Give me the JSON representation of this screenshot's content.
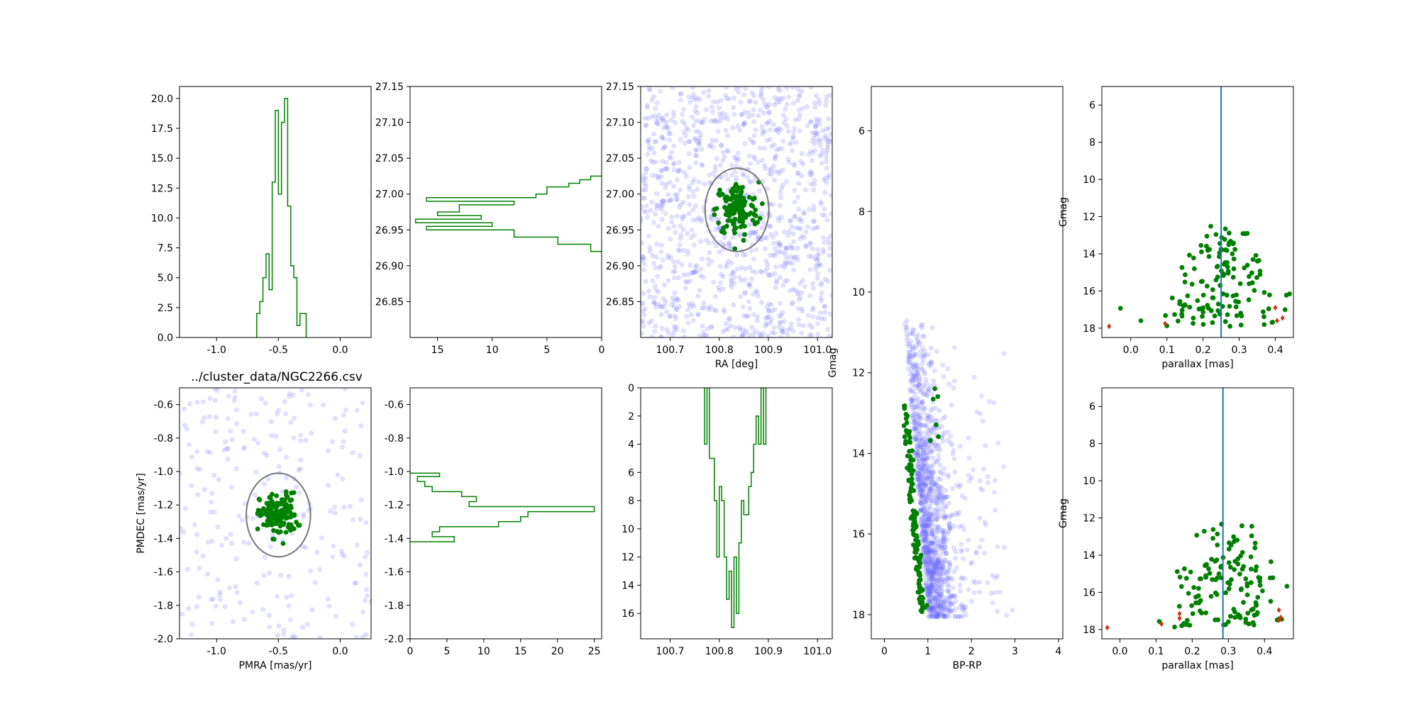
{
  "figure": {
    "title": "../cluster_data/NGC2266.csv"
  },
  "colors": {
    "member": "#008000",
    "field": "#6666ff",
    "ellipse": "#777777",
    "outlier": "#cc3311",
    "vline": "#1f77b4"
  },
  "chart_data": [
    {
      "id": "pmra-hist",
      "type": "histogram",
      "xlim": [
        -1.3,
        0.25
      ],
      "ylim": [
        0,
        21
      ],
      "xticks": [
        "-1.0",
        "-0.5",
        "0.0"
      ],
      "yticks": [
        "0.0",
        "2.5",
        "5.0",
        "7.5",
        "10.0",
        "12.5",
        "15.0",
        "17.5",
        "20.0"
      ],
      "bins": [
        [
          -0.675,
          -0.65,
          2
        ],
        [
          -0.65,
          -0.625,
          3
        ],
        [
          -0.625,
          -0.6,
          5
        ],
        [
          -0.6,
          -0.575,
          7
        ],
        [
          -0.575,
          -0.55,
          4
        ],
        [
          -0.55,
          -0.525,
          13
        ],
        [
          -0.525,
          -0.5,
          19
        ],
        [
          -0.5,
          -0.475,
          12
        ],
        [
          -0.475,
          -0.45,
          18
        ],
        [
          -0.45,
          -0.425,
          20
        ],
        [
          -0.425,
          -0.4,
          11
        ],
        [
          -0.4,
          -0.375,
          6
        ],
        [
          -0.375,
          -0.35,
          5
        ],
        [
          -0.35,
          -0.325,
          1
        ],
        [
          -0.325,
          -0.3,
          2
        ],
        [
          -0.3,
          -0.275,
          2
        ]
      ]
    },
    {
      "id": "dec-hist",
      "type": "histogram",
      "orientation": "horizontal",
      "xlim": [
        17.5,
        0
      ],
      "ylim": [
        26.8,
        27.15
      ],
      "xticks": [
        "15",
        "10",
        "5",
        "0"
      ],
      "yticks": [
        "26.85",
        "26.90",
        "26.95",
        "27.00",
        "27.05",
        "27.10",
        "27.15"
      ],
      "bins": [
        [
          26.92,
          26.93,
          1
        ],
        [
          26.93,
          26.94,
          4
        ],
        [
          26.94,
          26.95,
          8
        ],
        [
          26.95,
          26.955,
          16
        ],
        [
          26.955,
          26.96,
          10
        ],
        [
          26.96,
          26.965,
          17
        ],
        [
          26.965,
          26.97,
          11
        ],
        [
          26.97,
          26.975,
          15
        ],
        [
          26.975,
          26.985,
          13
        ],
        [
          26.985,
          26.99,
          8
        ],
        [
          26.99,
          26.995,
          16
        ],
        [
          26.995,
          27.0,
          6
        ],
        [
          27.0,
          27.01,
          5
        ],
        [
          27.01,
          27.015,
          3
        ],
        [
          27.015,
          27.02,
          2
        ],
        [
          27.02,
          27.025,
          1
        ]
      ]
    },
    {
      "id": "sky-scatter",
      "type": "scatter",
      "xlim": [
        100.64,
        101.03
      ],
      "ylim": [
        26.8,
        27.15
      ],
      "xlabel": "RA [deg]",
      "xticks": [
        "100.7",
        "100.8",
        "100.9",
        "101.0"
      ],
      "yticks": [
        "26.85",
        "26.90",
        "26.95",
        "27.00",
        "27.05",
        "27.10",
        "27.15"
      ],
      "ellipse": {
        "cx": 100.836,
        "cy": 26.978,
        "rx": 0.065,
        "ry": 0.058
      },
      "members": {
        "count": 130,
        "spread": [
          0.022,
          0.019
        ]
      },
      "field": {
        "count": 1100
      }
    },
    {
      "id": "pm-scatter",
      "type": "scatter",
      "xlim": [
        -1.3,
        0.25
      ],
      "ylim": [
        -2.0,
        -0.5
      ],
      "xlabel": "PMRA [mas/yr]",
      "ylabel": "PMDEC [mas/yr]",
      "xticks": [
        "-1.0",
        "-0.5",
        "0.0"
      ],
      "yticks": [
        "-2.0",
        "-1.8",
        "-1.6",
        "-1.4",
        "-1.2",
        "-1.0",
        "-0.8",
        "-0.6"
      ],
      "ellipse": {
        "cx": -0.5,
        "cy": -1.26,
        "rx": 0.26,
        "ry": 0.25
      },
      "members": {
        "count": 140,
        "spread": [
          0.075,
          0.065
        ]
      },
      "field": {
        "count": 240
      }
    },
    {
      "id": "pmdec-hist",
      "type": "histogram",
      "orientation": "horizontal",
      "xlim": [
        0,
        26
      ],
      "ylim": [
        -2.0,
        -0.5
      ],
      "xticks": [
        "0",
        "5",
        "10",
        "15",
        "20",
        "25"
      ],
      "yticks": [
        "-2.0",
        "-1.8",
        "-1.6",
        "-1.4",
        "-1.2",
        "-1.0",
        "-0.8",
        "-0.6"
      ],
      "bins": [
        [
          -1.42,
          -1.39,
          6
        ],
        [
          -1.39,
          -1.36,
          3
        ],
        [
          -1.36,
          -1.33,
          4
        ],
        [
          -1.33,
          -1.3,
          12
        ],
        [
          -1.3,
          -1.27,
          15
        ],
        [
          -1.27,
          -1.24,
          16
        ],
        [
          -1.24,
          -1.21,
          25
        ],
        [
          -1.21,
          -1.18,
          8
        ],
        [
          -1.18,
          -1.15,
          9
        ],
        [
          -1.15,
          -1.12,
          7
        ],
        [
          -1.12,
          -1.09,
          3
        ],
        [
          -1.09,
          -1.06,
          2
        ],
        [
          -1.06,
          -1.03,
          1
        ],
        [
          -1.03,
          -1.01,
          4
        ]
      ]
    },
    {
      "id": "ra-hist",
      "type": "histogram",
      "xlim": [
        100.64,
        101.03
      ],
      "ylim": [
        17.8,
        0
      ],
      "xticks": [
        "100.7",
        "100.8",
        "100.9",
        "101.0"
      ],
      "yticks": [
        "0",
        "2",
        "4",
        "6",
        "8",
        "10",
        "12",
        "14",
        "16"
      ],
      "bins": [
        [
          100.77,
          100.775,
          4
        ],
        [
          100.775,
          100.78,
          0
        ],
        [
          100.78,
          100.79,
          5
        ],
        [
          100.79,
          100.795,
          8
        ],
        [
          100.795,
          100.8,
          12
        ],
        [
          100.8,
          100.805,
          7
        ],
        [
          100.805,
          100.81,
          8
        ],
        [
          100.81,
          100.815,
          12
        ],
        [
          100.815,
          100.82,
          15
        ],
        [
          100.82,
          100.825,
          13
        ],
        [
          100.825,
          100.83,
          17
        ],
        [
          100.83,
          100.835,
          12
        ],
        [
          100.835,
          100.84,
          16
        ],
        [
          100.84,
          100.845,
          11
        ],
        [
          100.845,
          100.85,
          8
        ],
        [
          100.85,
          100.86,
          9
        ],
        [
          100.86,
          100.865,
          7
        ],
        [
          100.865,
          100.87,
          6
        ],
        [
          100.87,
          100.875,
          4
        ],
        [
          100.875,
          100.88,
          2
        ],
        [
          100.88,
          100.885,
          4
        ],
        [
          100.885,
          100.89,
          0
        ],
        [
          100.89,
          100.895,
          4
        ]
      ]
    },
    {
      "id": "cmd",
      "type": "scatter",
      "xlim": [
        -0.3,
        4.1
      ],
      "ylim": [
        18.6,
        4.9
      ],
      "xlabel": "BP-RP",
      "ylabel": "Gmag",
      "xticks": [
        "0",
        "1",
        "2",
        "3",
        "4"
      ],
      "yticks": [
        "6",
        "8",
        "10",
        "12",
        "14",
        "16",
        "18"
      ],
      "members": {
        "count": 150
      },
      "field": {
        "count": 1300
      }
    },
    {
      "id": "plx-1",
      "type": "scatter",
      "xlim": [
        -0.08,
        0.45
      ],
      "ylim": [
        18.5,
        5.0
      ],
      "xlabel": "parallax [mas]",
      "ylabel": "Gmag",
      "xticks": [
        "0.0",
        "0.1",
        "0.2",
        "0.3",
        "0.4"
      ],
      "yticks": [
        "6",
        "8",
        "10",
        "12",
        "14",
        "16",
        "18"
      ],
      "vline": 0.25,
      "members": {
        "count": 140,
        "center": 0.26
      },
      "outliers": [
        [
          -0.06,
          17.9
        ],
        [
          0.095,
          17.75
        ],
        [
          0.4,
          16.9
        ],
        [
          0.405,
          17.6
        ],
        [
          0.42,
          17.45
        ]
      ]
    },
    {
      "id": "plx-2",
      "type": "scatter",
      "xlim": [
        -0.05,
        0.48
      ],
      "ylim": [
        18.5,
        5.0
      ],
      "xlabel": "parallax [mas]",
      "ylabel": "Gmag",
      "xticks": [
        "0.0",
        "0.1",
        "0.2",
        "0.3",
        "0.4"
      ],
      "yticks": [
        "6",
        "8",
        "10",
        "12",
        "14",
        "16",
        "18"
      ],
      "vline": 0.285,
      "members": {
        "count": 140,
        "center": 0.3
      },
      "outliers": [
        [
          -0.035,
          17.9
        ],
        [
          0.115,
          17.7
        ],
        [
          0.165,
          17.15
        ],
        [
          0.165,
          17.4
        ],
        [
          0.44,
          16.95
        ],
        [
          0.44,
          17.5
        ],
        [
          0.445,
          17.35
        ]
      ]
    }
  ]
}
